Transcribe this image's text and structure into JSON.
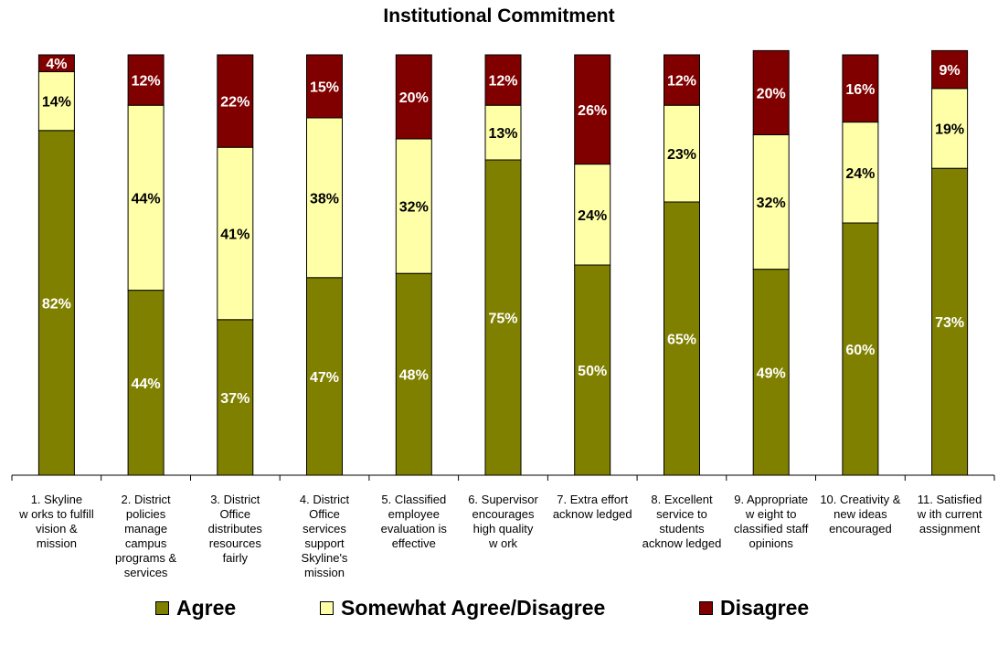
{
  "chart_data": {
    "type": "bar",
    "stacked": true,
    "percent": true,
    "title": "Institutional Commitment",
    "xlabel": "",
    "ylabel": "",
    "ylim": [
      0,
      100
    ],
    "grid": false,
    "legend_position": "bottom",
    "categories": [
      [
        "1. Skyline",
        "w orks to fulfill",
        "vision &",
        "mission"
      ],
      [
        "2. District",
        "policies",
        "manage",
        "campus",
        "programs &",
        "services"
      ],
      [
        "3. District",
        "Office",
        "distributes",
        "resources",
        "fairly"
      ],
      [
        "4. District",
        "Office",
        "services",
        "support",
        "Skyline's",
        "mission"
      ],
      [
        "5. Classified",
        "employee",
        "evaluation is",
        "effective"
      ],
      [
        "6. Supervisor",
        "encourages",
        "high quality",
        "w ork"
      ],
      [
        "7. Extra effort",
        "acknow ledged"
      ],
      [
        "8. Excellent",
        "service to",
        "students",
        "acknow ledged"
      ],
      [
        "9. Appropriate",
        "w eight to",
        "classified staff",
        "opinions"
      ],
      [
        "10. Creativity &",
        "new ideas",
        "encouraged"
      ],
      [
        "11. Satisfied",
        "w ith current",
        "assignment"
      ]
    ],
    "series": [
      {
        "name": "Agree",
        "color": "#808000",
        "label_color": "#ffffff",
        "values": [
          82,
          44,
          37,
          47,
          48,
          75,
          50,
          65,
          49,
          60,
          73
        ]
      },
      {
        "name": "Somewhat Agree/Disagree",
        "color": "#ffffa8",
        "label_color": "#000000",
        "values": [
          14,
          44,
          41,
          38,
          32,
          13,
          24,
          23,
          32,
          24,
          19
        ]
      },
      {
        "name": "Disagree",
        "color": "#800000",
        "label_color": "#ffffff",
        "values": [
          4,
          12,
          22,
          15,
          20,
          12,
          26,
          12,
          20,
          16,
          9
        ]
      }
    ]
  }
}
